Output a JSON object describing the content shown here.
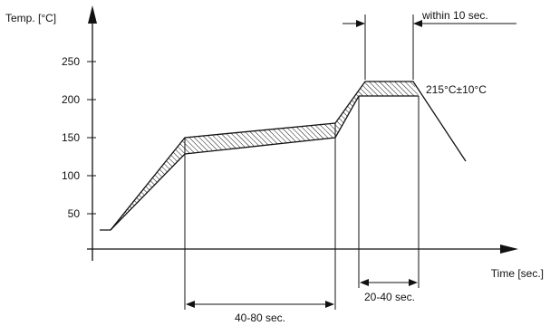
{
  "diagram": {
    "y_axis_label": "Temp. [°C]",
    "x_axis_label": "Time [sec.]",
    "y_ticks": [
      "50",
      "100",
      "150",
      "200",
      "250"
    ],
    "peak_label": "215°C±10°C",
    "annotation_within": "within 10 sec.",
    "annotation_20_40": "20-40 sec.",
    "annotation_40_80": "40-80 sec."
  }
}
